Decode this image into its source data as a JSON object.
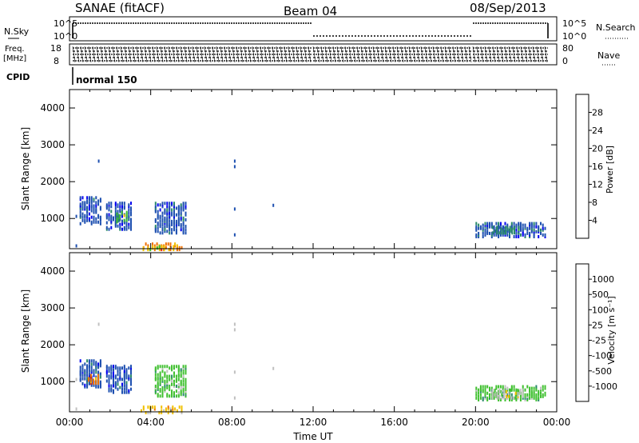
{
  "header": {
    "station": "SANAE (fitACF)",
    "beam": "Beam 04",
    "date": "08/Sep/2013"
  },
  "top_panel": {
    "nsky_label": "N.Sky",
    "nsearch_label": "N.Search",
    "log_ticks": [
      "10^5",
      "10^0"
    ],
    "freq_label_line1": "Freq.",
    "freq_label_line2": "[MHz]",
    "freq_ticks": [
      "18",
      "8"
    ],
    "nave_label": "Nave",
    "nave_ticks": [
      "80",
      "0"
    ],
    "cpid_label": "CPID",
    "cpid_value": "normal 150"
  },
  "chart_data": [
    {
      "type": "heatmap",
      "name": "power",
      "xlabel": "",
      "ylabel": "Slant Range [km]",
      "xlim": [
        0,
        24
      ],
      "ylim": [
        180,
        4500
      ],
      "yticks": [
        1000,
        2000,
        3000,
        4000
      ],
      "colorbar": {
        "label": "Power [dB]",
        "ticks": [
          "4",
          "8",
          "12",
          "16",
          "20",
          "24",
          "28"
        ],
        "colors": [
          "#0000ee",
          "#1e50b0",
          "#2a8a6a",
          "#40c030",
          "#f0c000",
          "#f07000",
          "#e82010",
          "#ff0000"
        ]
      },
      "regions": [
        {
          "t0": 0.5,
          "t1": 1.6,
          "r0": 900,
          "r1": 1650,
          "level": 1
        },
        {
          "t0": 1.8,
          "t1": 3.1,
          "r0": 750,
          "r1": 1500,
          "level": 1
        },
        {
          "t0": 2.3,
          "t1": 2.9,
          "r0": 950,
          "r1": 1250,
          "level": 3
        },
        {
          "t0": 4.2,
          "t1": 5.8,
          "r0": 650,
          "r1": 1500,
          "level": 1
        },
        {
          "t0": 3.5,
          "t1": 5.6,
          "r0": 200,
          "r1": 400,
          "level": 5
        },
        {
          "t0": 3.6,
          "t1": 5.2,
          "r0": 200,
          "r1": 320,
          "level": 4
        },
        {
          "t0": 20.0,
          "t1": 23.5,
          "r0": 550,
          "r1": 950,
          "level": 1
        },
        {
          "t0": 20.8,
          "t1": 22.2,
          "r0": 650,
          "r1": 850,
          "level": 2
        }
      ]
    },
    {
      "type": "heatmap",
      "name": "velocity",
      "xlabel": "Time UT",
      "ylabel": "Slant Range [km]",
      "xlim": [
        0,
        24
      ],
      "ylim": [
        180,
        4500
      ],
      "xticks": [
        "00:00",
        "04:00",
        "08:00",
        "12:00",
        "16:00",
        "20:00",
        "00:00"
      ],
      "yticks": [
        1000,
        2000,
        3000,
        4000
      ],
      "colorbar": {
        "label": "Velocity [m s⁻¹]",
        "ticks": [
          "-1000",
          "-500",
          "-100",
          "-25",
          "25",
          "100",
          "500",
          "1000"
        ],
        "colors": [
          "#ff0000",
          "#e82010",
          "#f07000",
          "#f0c000",
          "#c0c0c0",
          "#40c030",
          "#2a8a6a",
          "#1e50b0",
          "#0000ee"
        ]
      },
      "regions": [
        {
          "t0": 0.5,
          "t1": 1.6,
          "r0": 900,
          "r1": 1650,
          "level": 7
        },
        {
          "t0": 0.9,
          "t1": 1.5,
          "r0": 1000,
          "r1": 1250,
          "level": 2
        },
        {
          "t0": 1.8,
          "t1": 3.1,
          "r0": 750,
          "r1": 1500,
          "level": 7
        },
        {
          "t0": 4.2,
          "t1": 5.8,
          "r0": 650,
          "r1": 1500,
          "level": 5
        },
        {
          "t0": 3.5,
          "t1": 5.6,
          "r0": 200,
          "r1": 400,
          "level": 3
        },
        {
          "t0": 20.0,
          "t1": 23.5,
          "r0": 550,
          "r1": 950,
          "level": 5
        },
        {
          "t0": 20.8,
          "t1": 22.4,
          "r0": 600,
          "r1": 850,
          "level": 4
        }
      ]
    }
  ]
}
